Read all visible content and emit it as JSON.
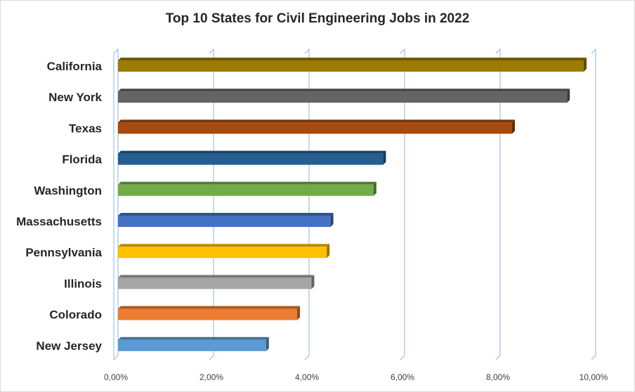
{
  "chart_data": {
    "type": "bar",
    "orientation": "horizontal",
    "title": "Top 10 States for Civil Engineering Jobs in 2022",
    "xlabel": "",
    "ylabel": "",
    "xlim": [
      0,
      10
    ],
    "x_ticks": [
      0,
      2,
      4,
      6,
      8,
      10
    ],
    "x_tick_labels": [
      "0,00%",
      "2,00%",
      "4,00%",
      "6,00%",
      "8,00%",
      "10,00%"
    ],
    "grid": "vertical",
    "legend": "none",
    "categories": [
      "California",
      "New York",
      "Texas",
      "Florida",
      "Washington",
      "Massachusetts",
      "Pennsylvania",
      "Illinois",
      "Colorado",
      "New Jersey"
    ],
    "values": [
      9.75,
      9.4,
      8.25,
      5.55,
      5.35,
      4.45,
      4.37,
      4.05,
      3.75,
      3.1
    ],
    "colors": [
      "#9C7C00",
      "#646464",
      "#A64A0E",
      "#255E91",
      "#70AD47",
      "#4472C4",
      "#FFC000",
      "#A5A5A5",
      "#ED7D31",
      "#5B9BD5"
    ]
  }
}
